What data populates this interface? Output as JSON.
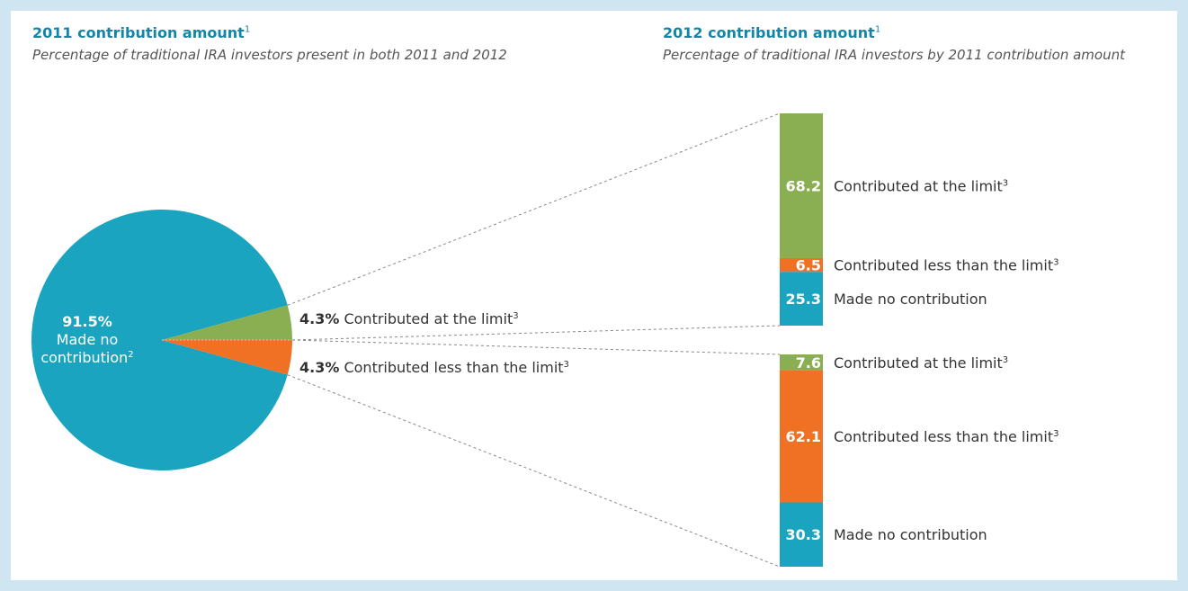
{
  "colors": {
    "green": "#8aae52",
    "orange": "#f07124",
    "blue": "#1aa4bf",
    "title_blue": "#1386a8",
    "border": "#cfe6f2"
  },
  "left": {
    "title": "2011 contribution amount",
    "title_sup": "1",
    "subtitle": "Percentage of traditional IRA investors present in both 2011 and 2012"
  },
  "right": {
    "title": "2012 contribution amount",
    "title_sup": "1",
    "subtitle": "Percentage of traditional IRA investors by 2011 contribution amount"
  },
  "chart_data": [
    {
      "type": "pie",
      "title": "2011 contribution amount",
      "subtitle": "Percentage of traditional IRA investors present in both 2011 and 2012",
      "unit": "%",
      "slices": [
        {
          "label": "Made no contribution",
          "sup": "2",
          "value": 91.5,
          "color": "#1aa4bf"
        },
        {
          "label": "Contributed at the limit",
          "sup": "3",
          "value": 4.3,
          "color": "#8aae52"
        },
        {
          "label": "Contributed less than the limit",
          "sup": "3",
          "value": 4.3,
          "color": "#f07124"
        }
      ]
    },
    {
      "type": "bar",
      "stacked": true,
      "title": "2012 contribution amount",
      "subtitle": "Percentage of traditional IRA investors by 2011 contribution amount",
      "bars": [
        {
          "group": "Contributed at the limit",
          "segments": [
            {
              "label": "Contributed at the limit",
              "sup": "3",
              "value": 68.2,
              "color": "#8aae52"
            },
            {
              "label": "Contributed less than the limit",
              "sup": "3",
              "value": 6.5,
              "color": "#f07124"
            },
            {
              "label": "Made no contribution",
              "sup": "",
              "value": 25.3,
              "color": "#1aa4bf"
            }
          ]
        },
        {
          "group": "Contributed less than the limit",
          "segments": [
            {
              "label": "Contributed at the limit",
              "sup": "3",
              "value": 7.6,
              "color": "#8aae52"
            },
            {
              "label": "Contributed less than the limit",
              "sup": "3",
              "value": 62.1,
              "color": "#f07124"
            },
            {
              "label": "Made no contribution",
              "sup": "",
              "value": 30.3,
              "color": "#1aa4bf"
            }
          ]
        }
      ]
    }
  ]
}
